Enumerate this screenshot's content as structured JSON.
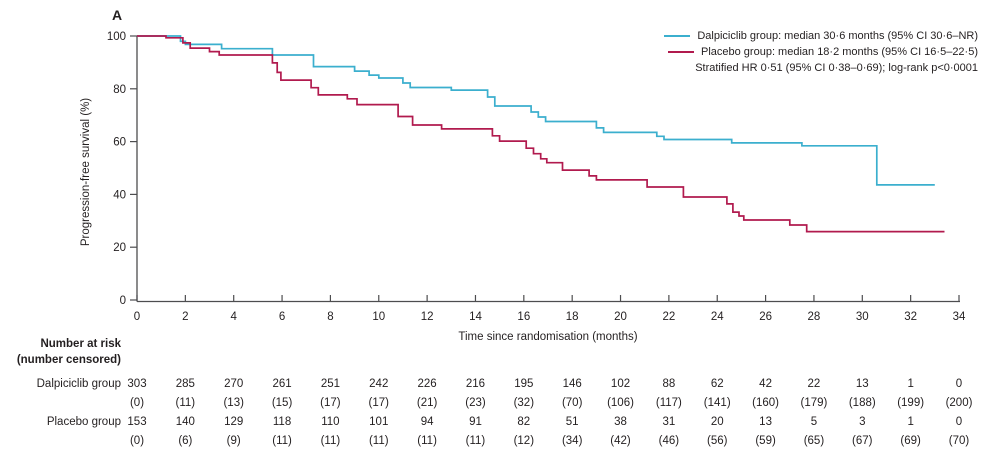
{
  "panel_label": "A",
  "legend": {
    "dalpiciclib": "Dalpiciclib group: median 30·6 months (95% CI 30·6–NR)",
    "placebo": "Placebo group: median 18·2 months (95% CI 16·5–22·5)",
    "stratified": "Stratified HR 0·51 (95% CI 0·38–0·69); log-rank p<0·0001"
  },
  "colors": {
    "dalpiciclib": "#3BAFCE",
    "placebo": "#B11A4E",
    "axis": "#4D4D4F",
    "text": "#231F20"
  },
  "chart_data": {
    "type": "line",
    "subtype": "kaplan-meier-step",
    "title": "",
    "xlabel": "Time since randomisation (months)",
    "ylabel": "Progression-free survival (%)",
    "xlim": [
      0,
      34
    ],
    "ylim": [
      0,
      100
    ],
    "x_ticks": [
      0,
      2,
      4,
      6,
      8,
      10,
      12,
      14,
      16,
      18,
      20,
      22,
      24,
      26,
      28,
      30,
      32,
      34
    ],
    "y_ticks": [
      0,
      20,
      40,
      60,
      80,
      100
    ],
    "grid": false,
    "legend_position": "top-right",
    "series": [
      {
        "name": "Dalpiciclib group",
        "color": "#3BAFCE",
        "start_value": 100,
        "end_time": 33.0,
        "steps": [
          [
            1.8,
            98.0
          ],
          [
            2.0,
            96.8
          ],
          [
            3.5,
            95.2
          ],
          [
            5.6,
            92.8
          ],
          [
            7.3,
            88.4
          ],
          [
            9.0,
            86.7
          ],
          [
            9.6,
            85.2
          ],
          [
            10.0,
            84.1
          ],
          [
            11.0,
            82.2
          ],
          [
            11.3,
            80.5
          ],
          [
            13.0,
            79.5
          ],
          [
            14.5,
            76.9
          ],
          [
            14.8,
            73.5
          ],
          [
            16.3,
            71.2
          ],
          [
            16.6,
            69.3
          ],
          [
            16.9,
            67.6
          ],
          [
            19.0,
            65.2
          ],
          [
            19.3,
            63.5
          ],
          [
            21.5,
            62.0
          ],
          [
            21.8,
            60.8
          ],
          [
            24.6,
            59.5
          ],
          [
            27.5,
            58.4
          ],
          [
            30.6,
            43.6
          ]
        ],
        "censors": [
          [
            1.3,
            100
          ],
          [
            1.65,
            100
          ],
          [
            3.3,
            96.8
          ],
          [
            6.1,
            92.8
          ],
          [
            7.7,
            88.4
          ],
          [
            8.1,
            88.4
          ],
          [
            12.2,
            80.5
          ],
          [
            12.9,
            80.5
          ],
          [
            13.6,
            79.5
          ],
          [
            14.2,
            79.5
          ],
          [
            14.6,
            76.9
          ],
          [
            15.9,
            73.5
          ],
          [
            16.35,
            71.2
          ],
          [
            16.5,
            71.2
          ],
          [
            16.65,
            69.3
          ],
          [
            16.8,
            69.3
          ],
          [
            16.95,
            67.6
          ],
          [
            17.7,
            67.6
          ],
          [
            18.0,
            67.6
          ],
          [
            18.4,
            67.6
          ],
          [
            18.8,
            67.6
          ],
          [
            19.1,
            65.2
          ],
          [
            19.25,
            63.5
          ],
          [
            19.5,
            63.5
          ],
          [
            20.2,
            63.5
          ],
          [
            20.5,
            63.5
          ],
          [
            21.6,
            62.0
          ],
          [
            21.9,
            60.8
          ],
          [
            22.6,
            60.8
          ],
          [
            22.9,
            60.8
          ],
          [
            24.5,
            60.8
          ],
          [
            24.7,
            59.5
          ],
          [
            24.9,
            59.5
          ],
          [
            25.9,
            59.5
          ],
          [
            27.3,
            59.5
          ],
          [
            27.45,
            59.5
          ],
          [
            27.6,
            58.4
          ],
          [
            27.75,
            58.4
          ],
          [
            27.9,
            58.4
          ],
          [
            28.1,
            58.4
          ],
          [
            28.35,
            58.4
          ],
          [
            28.7,
            58.4
          ],
          [
            29.0,
            58.4
          ],
          [
            29.1,
            58.4
          ],
          [
            30.2,
            58.4
          ],
          [
            30.35,
            58.4
          ],
          [
            30.5,
            58.4
          ],
          [
            30.65,
            43.6
          ],
          [
            32.9,
            43.6
          ]
        ]
      },
      {
        "name": "Placebo group",
        "color": "#B11A4E",
        "start_value": 100,
        "end_time": 33.4,
        "steps": [
          [
            1.2,
            99.3
          ],
          [
            1.9,
            97.4
          ],
          [
            2.2,
            95.4
          ],
          [
            3.0,
            94.1
          ],
          [
            3.4,
            92.8
          ],
          [
            5.6,
            89.8
          ],
          [
            5.8,
            86.2
          ],
          [
            5.95,
            83.3
          ],
          [
            7.2,
            80.4
          ],
          [
            7.5,
            77.7
          ],
          [
            8.7,
            76.2
          ],
          [
            9.1,
            74.0
          ],
          [
            10.8,
            69.5
          ],
          [
            11.4,
            66.3
          ],
          [
            12.6,
            64.8
          ],
          [
            14.7,
            62.2
          ],
          [
            15.0,
            60.2
          ],
          [
            16.1,
            57.5
          ],
          [
            16.4,
            55.4
          ],
          [
            16.7,
            53.5
          ],
          [
            16.95,
            52.0
          ],
          [
            17.6,
            49.2
          ],
          [
            18.7,
            47.0
          ],
          [
            19.0,
            45.5
          ],
          [
            21.1,
            42.8
          ],
          [
            22.6,
            39.0
          ],
          [
            24.4,
            36.4
          ],
          [
            24.65,
            33.3
          ],
          [
            24.9,
            31.8
          ],
          [
            25.1,
            30.3
          ],
          [
            27.0,
            28.4
          ],
          [
            27.7,
            25.9
          ]
        ],
        "censors": [
          [
            0.05,
            100
          ],
          [
            1.4,
            97.4
          ],
          [
            2.9,
            94.1
          ],
          [
            4.9,
            92.8
          ],
          [
            7.9,
            77.7
          ],
          [
            10.4,
            74.0
          ],
          [
            13.0,
            64.8
          ],
          [
            14.85,
            62.2
          ],
          [
            16.15,
            57.5
          ],
          [
            16.45,
            55.4
          ],
          [
            16.75,
            53.5
          ],
          [
            17.0,
            52.0
          ],
          [
            17.8,
            49.2
          ],
          [
            18.8,
            47.0
          ],
          [
            19.3,
            45.5
          ],
          [
            19.6,
            45.5
          ],
          [
            19.9,
            45.5
          ],
          [
            20.3,
            45.5
          ],
          [
            20.8,
            45.5
          ],
          [
            21.6,
            42.8
          ],
          [
            21.9,
            42.8
          ],
          [
            22.2,
            42.8
          ],
          [
            22.9,
            39.0
          ],
          [
            24.5,
            36.4
          ],
          [
            24.8,
            33.3
          ],
          [
            25.0,
            31.8
          ],
          [
            27.75,
            25.9
          ],
          [
            27.9,
            25.9
          ],
          [
            28.8,
            25.9
          ],
          [
            29.2,
            25.9
          ],
          [
            30.2,
            25.9
          ],
          [
            30.6,
            25.9
          ],
          [
            33.1,
            25.9
          ]
        ]
      }
    ]
  },
  "risk_table": {
    "header_line1": "Number at risk",
    "header_line2": "(number censored)",
    "times": [
      0,
      2,
      4,
      6,
      8,
      10,
      12,
      14,
      16,
      18,
      20,
      22,
      24,
      26,
      28,
      30,
      32,
      34
    ],
    "rows": [
      {
        "label": "Dalpiciclib group",
        "at_risk": [
          303,
          285,
          270,
          261,
          251,
          242,
          226,
          216,
          195,
          146,
          102,
          88,
          62,
          42,
          22,
          13,
          1,
          0
        ],
        "censored": [
          0,
          11,
          13,
          15,
          17,
          17,
          21,
          23,
          32,
          70,
          106,
          117,
          141,
          160,
          179,
          188,
          199,
          200
        ]
      },
      {
        "label": "Placebo group",
        "at_risk": [
          153,
          140,
          129,
          118,
          110,
          101,
          94,
          91,
          82,
          51,
          38,
          31,
          20,
          13,
          5,
          3,
          1,
          0
        ],
        "censored": [
          0,
          6,
          9,
          11,
          11,
          11,
          11,
          11,
          12,
          34,
          42,
          46,
          56,
          59,
          65,
          67,
          69,
          70
        ]
      }
    ]
  }
}
